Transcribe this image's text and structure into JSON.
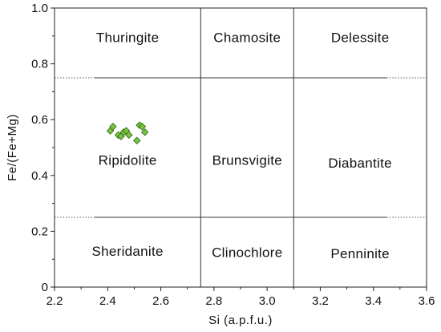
{
  "chart_data": {
    "type": "scatter",
    "xlabel": "Si (a.p.f.u.)",
    "ylabel": "Fe/(Fe+Mg)",
    "xlim": [
      2.2,
      3.6
    ],
    "ylim": [
      0,
      1.0
    ],
    "x_ticks": [
      "2.2",
      "2.4",
      "2.6",
      "2.8",
      "3.0",
      "3.2",
      "3.4",
      "3.6"
    ],
    "y_ticks": [
      "0",
      "0.2",
      "0.4",
      "0.6",
      "0.8",
      "1.0"
    ],
    "grid": false,
    "boundaries": {
      "vertical_si": [
        2.75,
        3.1
      ],
      "horizontal_fe": [
        0.25,
        0.75
      ],
      "dotted_extent_si": [
        2.35,
        3.45
      ]
    },
    "fields": [
      {
        "label": "Thuringite",
        "x": 2.475,
        "y": 0.895
      },
      {
        "label": "Chamosite",
        "x": 2.925,
        "y": 0.895
      },
      {
        "label": "Delessite",
        "x": 3.35,
        "y": 0.895
      },
      {
        "label": "Ripidolite",
        "x": 2.475,
        "y": 0.455
      },
      {
        "label": "Brunsvigite",
        "x": 2.925,
        "y": 0.455
      },
      {
        "label": "Diabantite",
        "x": 3.35,
        "y": 0.445
      },
      {
        "label": "Sheridanite",
        "x": 2.475,
        "y": 0.13
      },
      {
        "label": "Clinochlore",
        "x": 2.925,
        "y": 0.125
      },
      {
        "label": "Penninite",
        "x": 3.35,
        "y": 0.12
      }
    ],
    "series": [
      {
        "marker": "diamond",
        "color": "#7ac143",
        "edge_color": "#2e6b12",
        "points": [
          [
            2.42,
            0.575
          ],
          [
            2.41,
            0.56
          ],
          [
            2.44,
            0.545
          ],
          [
            2.46,
            0.555
          ],
          [
            2.45,
            0.54
          ],
          [
            2.47,
            0.56
          ],
          [
            2.48,
            0.545
          ],
          [
            2.51,
            0.525
          ],
          [
            2.52,
            0.58
          ],
          [
            2.53,
            0.575
          ],
          [
            2.54,
            0.555
          ]
        ]
      }
    ]
  }
}
